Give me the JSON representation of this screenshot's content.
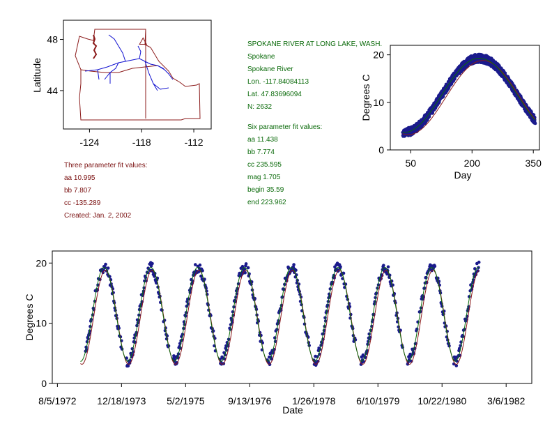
{
  "station": {
    "name": "SPOKANE RIVER AT LONG LAKE, WASH.",
    "city": "Spokane",
    "river": "Spokane River",
    "lon": "Lon. -117.84084113",
    "lat": "Lat. 47.83696094",
    "n": "N: 2632"
  },
  "six_fit": {
    "title": "Six parameter fit values:",
    "aa": "aa 11.438",
    "bb": "bb 7.774",
    "cc": "cc 235.595",
    "mag": "mag 1.705",
    "begin": "begin 35.59",
    "end": "end 223.962"
  },
  "three_fit": {
    "title": "Three parameter fit values:",
    "aa": "aa 10.995",
    "bb": "bb 7.807",
    "cc": "cc -135.289",
    "created": "Created:   Jan. 2, 2002"
  },
  "colors": {
    "data": "#1a1a8c",
    "green_fit": "#0a6a0a",
    "red_fit": "#8b1a1a",
    "map_border": "#8b1a1a",
    "river": "#1010d0"
  },
  "chart_data": [
    {
      "type": "scatter",
      "name": "location-map",
      "ylabel": "Latitude",
      "xlabel": "",
      "x_ticks": [
        "-124",
        "-118",
        "-112"
      ],
      "y_ticks": [
        "48",
        "44"
      ],
      "xlim": [
        -127,
        -110
      ],
      "ylim": [
        41,
        49.5
      ],
      "station_marker": {
        "lon": -117.84,
        "lat": 47.84,
        "symbol": "triangle"
      }
    },
    {
      "type": "scatter",
      "name": "day-of-year",
      "xlabel": "Day",
      "ylabel": "Degrees C",
      "xlim": [
        0,
        365
      ],
      "ylim": [
        0,
        22
      ],
      "x_ticks": [
        "50",
        "200",
        "350"
      ],
      "y_ticks": [
        "0",
        "10",
        "20"
      ],
      "x_tick_values": [
        50,
        200,
        350
      ],
      "y_tick_values": [
        0,
        10,
        20
      ],
      "data_range_days": [
        30,
        355
      ],
      "models": {
        "three_param": {
          "aa": 10.995,
          "bb": 7.807,
          "cc": -135.289
        },
        "six_param": {
          "aa": 11.438,
          "bb": 7.774,
          "cc": 235.595,
          "mag": 1.705,
          "begin": 35.59,
          "end": 223.962
        }
      }
    },
    {
      "type": "line",
      "name": "time-series",
      "xlabel": "Date",
      "ylabel": "Degrees C",
      "ylim": [
        0,
        22
      ],
      "y_ticks": [
        "0",
        "10",
        "20"
      ],
      "y_tick_values": [
        0,
        10,
        20
      ],
      "x_ticks": [
        "8/5/1972",
        "12/18/1973",
        "5/2/1975",
        "9/13/1976",
        "1/26/1978",
        "6/10/1979",
        "10/22/1980",
        "3/6/1982"
      ],
      "x_tick_offsets_days": [
        0,
        500,
        1000,
        1500,
        2000,
        2500,
        3000,
        3500
      ],
      "xlim_offset_days": [
        -40,
        3700
      ],
      "data_range_offset_days": [
        220,
        3290
      ],
      "first_tick_day_of_year": 218
    }
  ]
}
